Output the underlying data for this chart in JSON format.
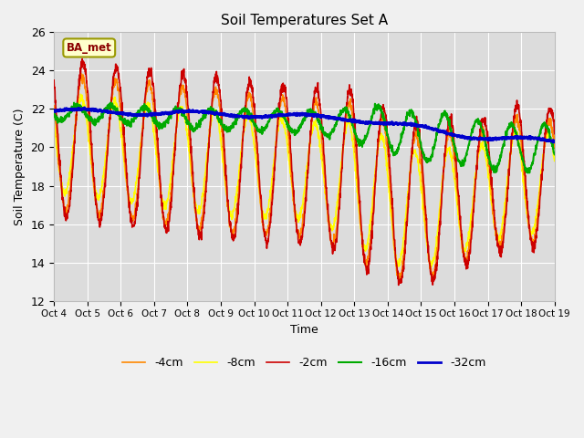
{
  "title": "Soil Temperatures Set A",
  "xlabel": "Time",
  "ylabel": "Soil Temperature (C)",
  "ylim": [
    12,
    26
  ],
  "xlim": [
    0,
    15
  ],
  "yticks": [
    12,
    14,
    16,
    18,
    20,
    22,
    24,
    26
  ],
  "xtick_labels": [
    "Oct 4",
    "Oct 5",
    "Oct 6",
    "Oct 7",
    "Oct 8",
    "Oct 9",
    "Oct 10",
    "Oct 11",
    "Oct 12",
    "Oct 13",
    "Oct 14",
    "Oct 15",
    "Oct 16",
    "Oct 17",
    "Oct 18",
    "Oct 19"
  ],
  "background_color": "#f0f0f0",
  "plot_bg_color": "#dcdcdc",
  "legend_labels": [
    "-2cm",
    "-4cm",
    "-8cm",
    "-16cm",
    "-32cm"
  ],
  "colors": [
    "#cc0000",
    "#ff8800",
    "#ffff00",
    "#00aa00",
    "#0000cc"
  ],
  "line_widths": [
    1.2,
    1.2,
    1.2,
    1.5,
    2.0
  ],
  "annotation_text": "BA_met",
  "figsize": [
    6.4,
    4.8
  ],
  "dpi": 100
}
